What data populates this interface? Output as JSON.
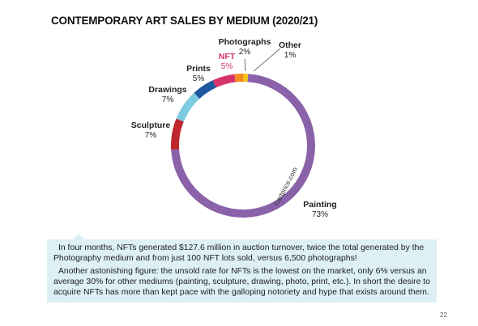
{
  "page": {
    "title": "CONTEMPORARY ART SALES BY MEDIUM (2020/21)",
    "watermark": "©artprice.com",
    "page_number": "22"
  },
  "info_box": {
    "paragraph1": "In four months, NFTs generated $127.6 million in auction turnover, twice the total generated by the Photography medium and from just 100 NFT lots sold, versus 6,500 photographs!",
    "paragraph2": "Another astonishing figure: the unsold rate for NFTs is the lowest on the market, only 6% versus an average 30% for other mediums (painting, sculpture, drawing, photo, print, etc.). In short the desire to acquire NFTs has more than kept pace with the galloping notoriety and hype that exists around them."
  },
  "chart_data": {
    "type": "pie",
    "donut": true,
    "title": "CONTEMPORARY ART SALES BY MEDIUM (2020/21)",
    "slices": [
      {
        "label": "Painting",
        "value": 73,
        "display": "73%",
        "color": "#8a62aa",
        "label_color": "#222222"
      },
      {
        "label": "Sculpture",
        "value": 7,
        "display": "7%",
        "color": "#c0272d",
        "label_color": "#222222"
      },
      {
        "label": "Drawings",
        "value": 7,
        "display": "7%",
        "color": "#7ccbe0",
        "label_color": "#222222"
      },
      {
        "label": "Prints",
        "value": 5,
        "display": "5%",
        "color": "#1f56a0",
        "label_color": "#222222"
      },
      {
        "label": "NFT",
        "value": 5,
        "display": "5%",
        "color": "#d6336c",
        "label_color": "#d6336c"
      },
      {
        "label": "Photographs",
        "value": 2,
        "display": "2%",
        "color": "#f28c1e",
        "label_color": "#222222"
      },
      {
        "label": "Other",
        "value": 1,
        "display": "1%",
        "color": "#f5c518",
        "label_color": "#222222"
      }
    ]
  }
}
